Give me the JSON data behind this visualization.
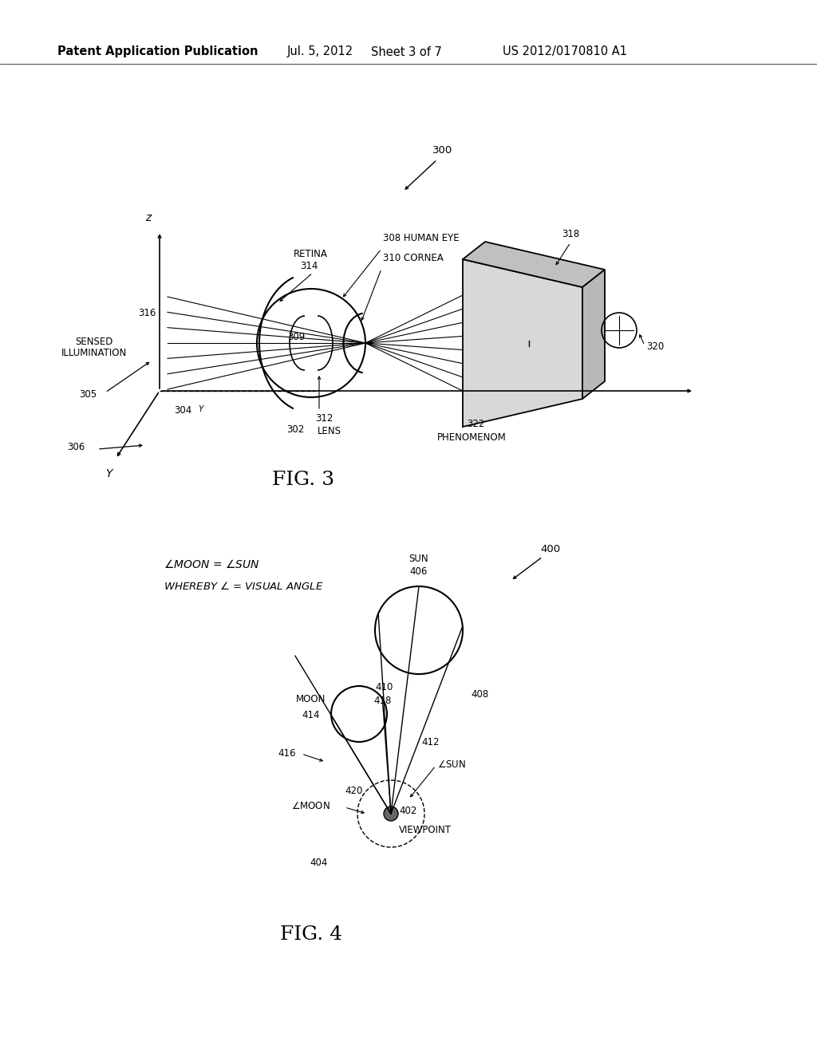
{
  "bg_color": "#ffffff",
  "header_text": "Patent Application Publication",
  "header_date": "Jul. 5, 2012",
  "header_sheet": "Sheet 3 of 7",
  "header_patent": "US 2012/0170810 A1",
  "fig3_label": "FIG. 3",
  "fig4_label": "FIG. 4",
  "text_color": "#000000",
  "line_color": "#000000",
  "fig_label_fontsize": 18,
  "annotation_fontsize": 8.5,
  "header_fontsize": 10.5
}
